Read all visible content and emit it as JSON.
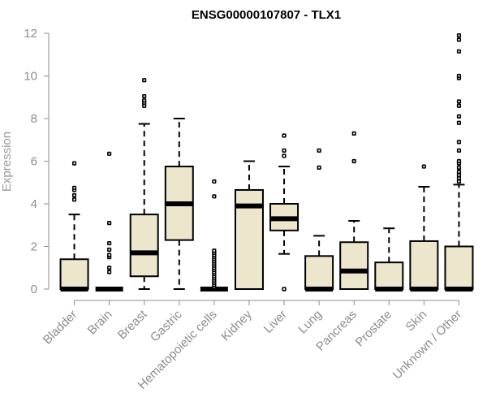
{
  "chart_data": {
    "type": "boxplot",
    "title": "ENSG00000107807 - TLX1",
    "xlabel": "",
    "ylabel": "Expression",
    "ylim": [
      0,
      12
    ],
    "yticks": [
      "0",
      "2",
      "4",
      "6",
      "8",
      "10",
      "12"
    ],
    "categories": [
      "Bladder",
      "Brain",
      "Breast",
      "Gastric",
      "Hematopoietic cells",
      "Kidney",
      "Liver",
      "Lung",
      "Pancreas",
      "Prostate",
      "Skin",
      "Unknown / Other"
    ],
    "boxes": [
      {
        "name": "Bladder",
        "min": 0,
        "q1": 0,
        "median": 0,
        "q3": 1.4,
        "max": 3.5,
        "outliers": [
          4.2,
          4.4,
          4.65,
          4.75,
          5.9
        ]
      },
      {
        "name": "Brain",
        "min": 0,
        "q1": 0,
        "median": 0,
        "q3": 0,
        "max": 0,
        "outliers": [
          0.8,
          1.0,
          1.5,
          1.6,
          1.85,
          2.15,
          3.1,
          6.35
        ]
      },
      {
        "name": "Breast",
        "min": 0,
        "q1": 0.6,
        "median": 1.7,
        "q3": 3.5,
        "max": 7.75,
        "outliers": [
          8.6,
          8.75,
          8.85,
          9.05,
          9.8
        ]
      },
      {
        "name": "Gastric",
        "min": 0,
        "q1": 2.3,
        "median": 4.0,
        "q3": 5.75,
        "max": 8.0,
        "outliers": []
      },
      {
        "name": "Hematopoietic cells",
        "min": 0,
        "q1": 0,
        "median": 0,
        "q3": 0,
        "max": 0,
        "outliers": [
          0.1,
          0.2,
          0.3,
          0.4,
          0.5,
          0.6,
          0.7,
          0.8,
          0.9,
          1.0,
          1.1,
          1.2,
          1.3,
          1.4,
          1.5,
          1.6,
          1.7,
          1.8,
          4.35,
          5.05
        ]
      },
      {
        "name": "Kidney",
        "min": 0,
        "q1": 0,
        "median": 3.9,
        "q3": 4.65,
        "max": 6.0,
        "outliers": []
      },
      {
        "name": "Liver",
        "min": 1.65,
        "q1": 2.75,
        "median": 3.3,
        "q3": 4.0,
        "max": 5.75,
        "outliers": [
          0,
          6.25,
          6.5,
          7.2
        ]
      },
      {
        "name": "Lung",
        "min": 0,
        "q1": 0,
        "median": 0,
        "q3": 1.55,
        "max": 2.5,
        "outliers": [
          5.7,
          6.5
        ]
      },
      {
        "name": "Pancreas",
        "min": 0,
        "q1": 0,
        "median": 0.85,
        "q3": 2.2,
        "max": 3.2,
        "outliers": [
          6.0,
          7.3
        ]
      },
      {
        "name": "Prostate",
        "min": 0,
        "q1": 0,
        "median": 0,
        "q3": 1.25,
        "max": 2.85,
        "outliers": []
      },
      {
        "name": "Skin",
        "min": 0,
        "q1": 0,
        "median": 0,
        "q3": 2.25,
        "max": 4.8,
        "outliers": [
          5.75
        ]
      },
      {
        "name": "Unknown / Other",
        "min": 0,
        "q1": 0,
        "median": 0,
        "q3": 2.0,
        "max": 4.9,
        "outliers": [
          5.05,
          5.2,
          5.35,
          5.5,
          5.7,
          5.9,
          6.0,
          6.5,
          6.9,
          7.8,
          8.1,
          8.6,
          8.8,
          9.9,
          10.0,
          11.15,
          11.7,
          11.9
        ]
      }
    ],
    "box_fill": "#ece6cc",
    "axis_color": "#8c8c8c"
  }
}
